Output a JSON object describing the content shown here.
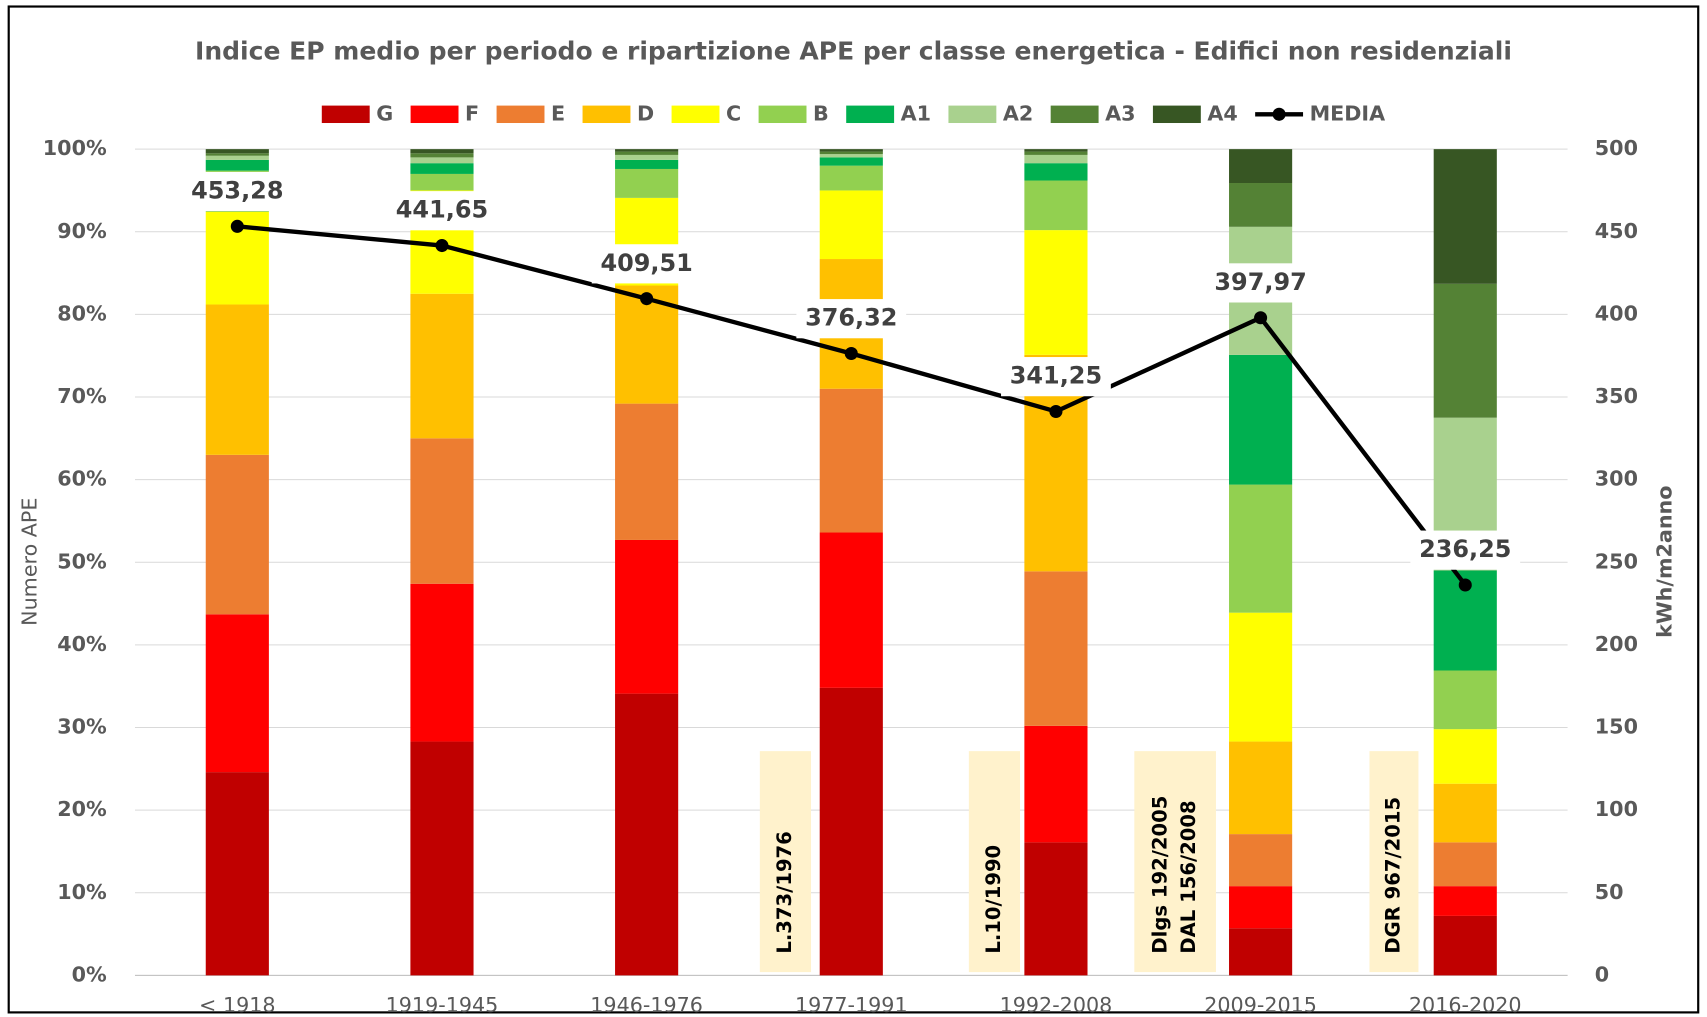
{
  "chart_data": {
    "type": "bar",
    "stacked": true,
    "title": "Indice EP medio per periodo e ripartizione APE per classe energetica - Edifici non residenziali",
    "ylabel": "Numero APE",
    "y2label": "kWh/m2anno",
    "categories": [
      "< 1918",
      "1919-1945",
      "1946-1976",
      "1977-1991",
      "1992-2008",
      "2009-2015",
      "2016-2020"
    ],
    "series": [
      {
        "name": "G",
        "color": "#c00000",
        "values": [
          24.6,
          28.3,
          34.1,
          34.8,
          16.1,
          5.7,
          7.2
        ]
      },
      {
        "name": "F",
        "color": "#ff0000",
        "values": [
          19.1,
          19.1,
          18.6,
          18.8,
          14.1,
          5.1,
          3.6
        ]
      },
      {
        "name": "E",
        "color": "#ed7d31",
        "values": [
          19.3,
          17.6,
          16.5,
          17.4,
          18.7,
          6.3,
          5.3
        ]
      },
      {
        "name": "D",
        "color": "#ffc000",
        "values": [
          18.2,
          17.5,
          14.3,
          15.7,
          26.2,
          11.2,
          7.1
        ]
      },
      {
        "name": "C",
        "color": "#ffff00",
        "values": [
          11.2,
          12.5,
          10.6,
          8.3,
          15.1,
          15.6,
          6.6
        ]
      },
      {
        "name": "B",
        "color": "#92d050",
        "values": [
          5.0,
          2.0,
          3.5,
          3.0,
          6.0,
          15.5,
          7.1
        ]
      },
      {
        "name": "A1",
        "color": "#00b050",
        "values": [
          1.3,
          1.3,
          1.1,
          1.0,
          2.1,
          15.7,
          12.1
        ]
      },
      {
        "name": "A2",
        "color": "#a9d18e",
        "values": [
          0.5,
          0.7,
          0.6,
          0.4,
          1.0,
          15.5,
          18.5
        ]
      },
      {
        "name": "A3",
        "color": "#548235",
        "values": [
          0.3,
          0.5,
          0.4,
          0.3,
          0.4,
          5.3,
          16.2
        ]
      },
      {
        "name": "A4",
        "color": "#375623",
        "values": [
          0.5,
          0.5,
          0.3,
          0.3,
          0.3,
          4.1,
          16.3
        ]
      },
      {
        "name": "MEDIA",
        "type": "line",
        "axis": "y2",
        "color": "#000000",
        "values": [
          453.28,
          441.65,
          409.51,
          376.32,
          341.25,
          397.97,
          236.25
        ],
        "value_labels": [
          "453,28",
          "441,65",
          "409,51",
          "376,32",
          "341,25",
          "397,97",
          "236,25"
        ]
      }
    ],
    "ylim": [
      0,
      100
    ],
    "yticks": [
      {
        "value": 0,
        "label": "0%"
      },
      {
        "value": 10,
        "label": "10%"
      },
      {
        "value": 20,
        "label": "20%"
      },
      {
        "value": 30,
        "label": "30%"
      },
      {
        "value": 40,
        "label": "40%"
      },
      {
        "value": 50,
        "label": "50%"
      },
      {
        "value": 60,
        "label": "60%"
      },
      {
        "value": 70,
        "label": "70%"
      },
      {
        "value": 80,
        "label": "80%"
      },
      {
        "value": 90,
        "label": "90%"
      },
      {
        "value": 100,
        "label": "100%"
      }
    ],
    "y2lim": [
      0,
      500
    ],
    "y2ticks": [
      0,
      50,
      100,
      150,
      200,
      250,
      300,
      350,
      400,
      450,
      500
    ],
    "grid": true,
    "legend": "top",
    "annotations": [
      [
        "L.373/1976"
      ],
      [
        "L.10/1990"
      ],
      [
        "Dlgs 192/2005",
        "DAL 156/2008"
      ],
      [
        "DGR 967/2015"
      ]
    ]
  }
}
